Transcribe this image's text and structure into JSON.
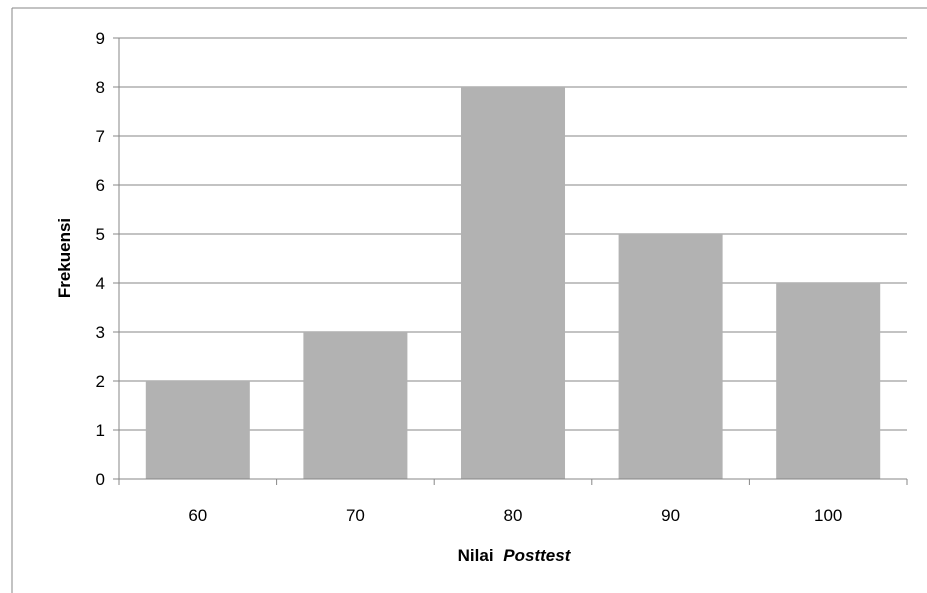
{
  "chart_data": {
    "type": "bar",
    "categories": [
      "60",
      "70",
      "80",
      "90",
      "100"
    ],
    "values": [
      2,
      3,
      8,
      5,
      4
    ],
    "title": "",
    "xlabel": "Nilai",
    "xlabel_italic": "Posttest",
    "ylabel": "Frekuensi",
    "ylim": [
      0,
      9
    ],
    "yticks": [
      "0",
      "1",
      "2",
      "3",
      "4",
      "5",
      "6",
      "7",
      "8",
      "9"
    ],
    "grid": true,
    "bar_color": "#b2b2b2",
    "grid_color": "#878787",
    "border_color": "#878787"
  }
}
